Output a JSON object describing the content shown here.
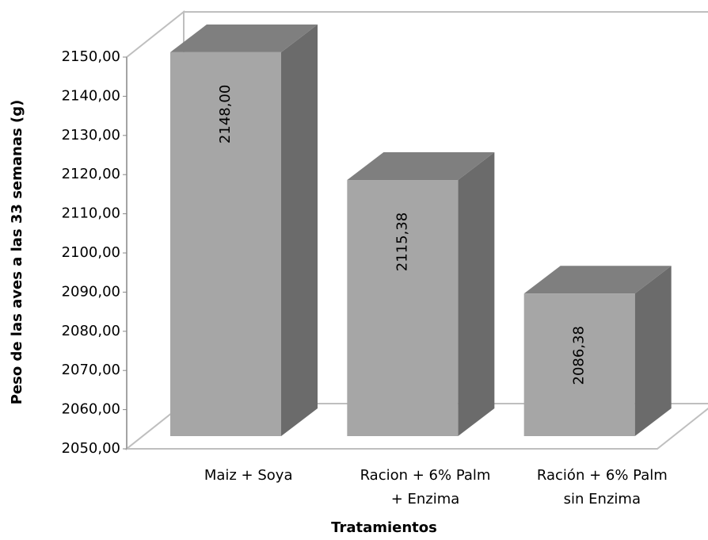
{
  "chart_data": {
    "type": "bar3d",
    "categories": [
      "Maiz + Soya",
      "Racion + 6% Palm\n+ Enzima",
      "Ración + 6% Palm\nsin Enzima"
    ],
    "values": [
      2148,
      2115.38,
      2086.38
    ],
    "value_labels": [
      "2148,00",
      "2115,38",
      "2086,38"
    ],
    "color": "#a6a6a6",
    "x_label": "Tratamientos",
    "y_label": "Peso de las aves a las 33 semanas (g)",
    "ylim": [
      2050,
      2150
    ],
    "yticks": [
      {
        "value": 2050,
        "label": "2050,00"
      },
      {
        "value": 2060,
        "label": "2060,00"
      },
      {
        "value": 2070,
        "label": "2070,00"
      },
      {
        "value": 2080,
        "label": "2080,00"
      },
      {
        "value": 2090,
        "label": "2090,00"
      },
      {
        "value": 2100,
        "label": "2100,00"
      },
      {
        "value": 2110,
        "label": "2110,00"
      },
      {
        "value": 2120,
        "label": "2120,00"
      },
      {
        "value": 2130,
        "label": "2130,00"
      },
      {
        "value": 2140,
        "label": "2140,00"
      },
      {
        "value": 2150,
        "label": "2150,00"
      }
    ],
    "grid": false
  }
}
